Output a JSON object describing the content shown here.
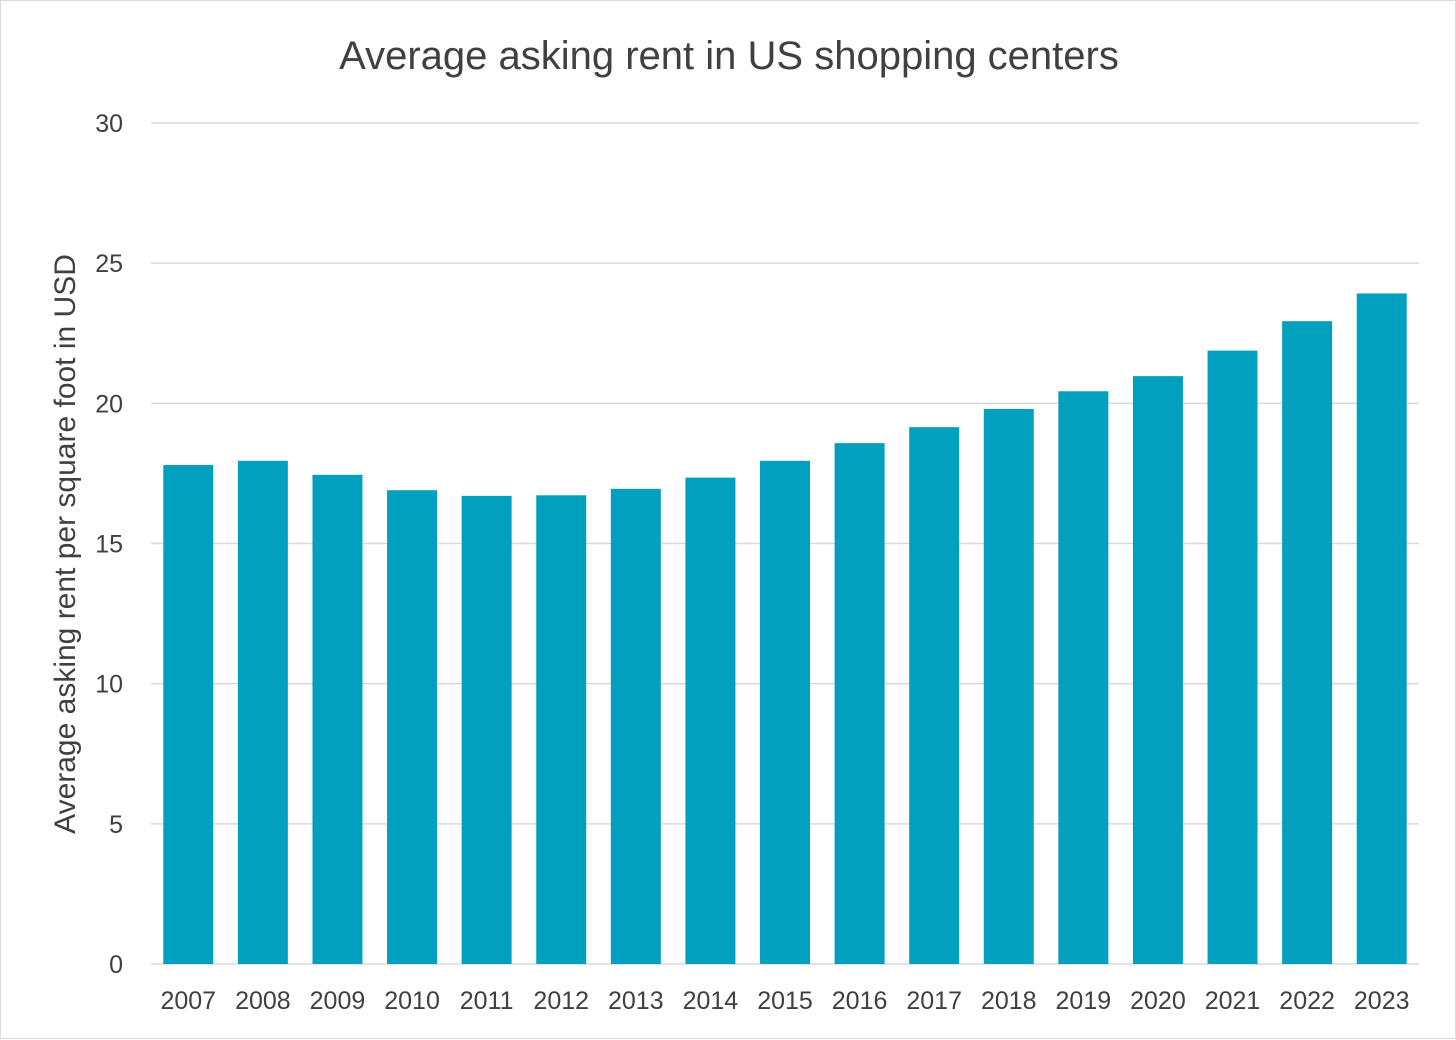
{
  "chart_data": {
    "type": "bar",
    "title": "Average asking rent in US shopping centers",
    "xlabel": "",
    "ylabel": "Average asking rent per square foot in USD",
    "categories": [
      "2007",
      "2008",
      "2009",
      "2010",
      "2011",
      "2012",
      "2013",
      "2014",
      "2015",
      "2016",
      "2017",
      "2018",
      "2019",
      "2020",
      "2021",
      "2022",
      "2023"
    ],
    "values": [
      17.8,
      17.95,
      17.45,
      16.9,
      16.7,
      16.72,
      16.95,
      17.35,
      17.95,
      18.58,
      19.15,
      19.8,
      20.43,
      20.97,
      21.88,
      22.93,
      23.92
    ],
    "ylim": [
      0,
      30
    ],
    "yticks": [
      "0",
      "5",
      "10",
      "15",
      "20",
      "25",
      "30"
    ],
    "grid": true,
    "legend": "none",
    "colors": {
      "bar": "#00A0BE",
      "grid": "#D9D9D9",
      "text": "#404040"
    }
  }
}
